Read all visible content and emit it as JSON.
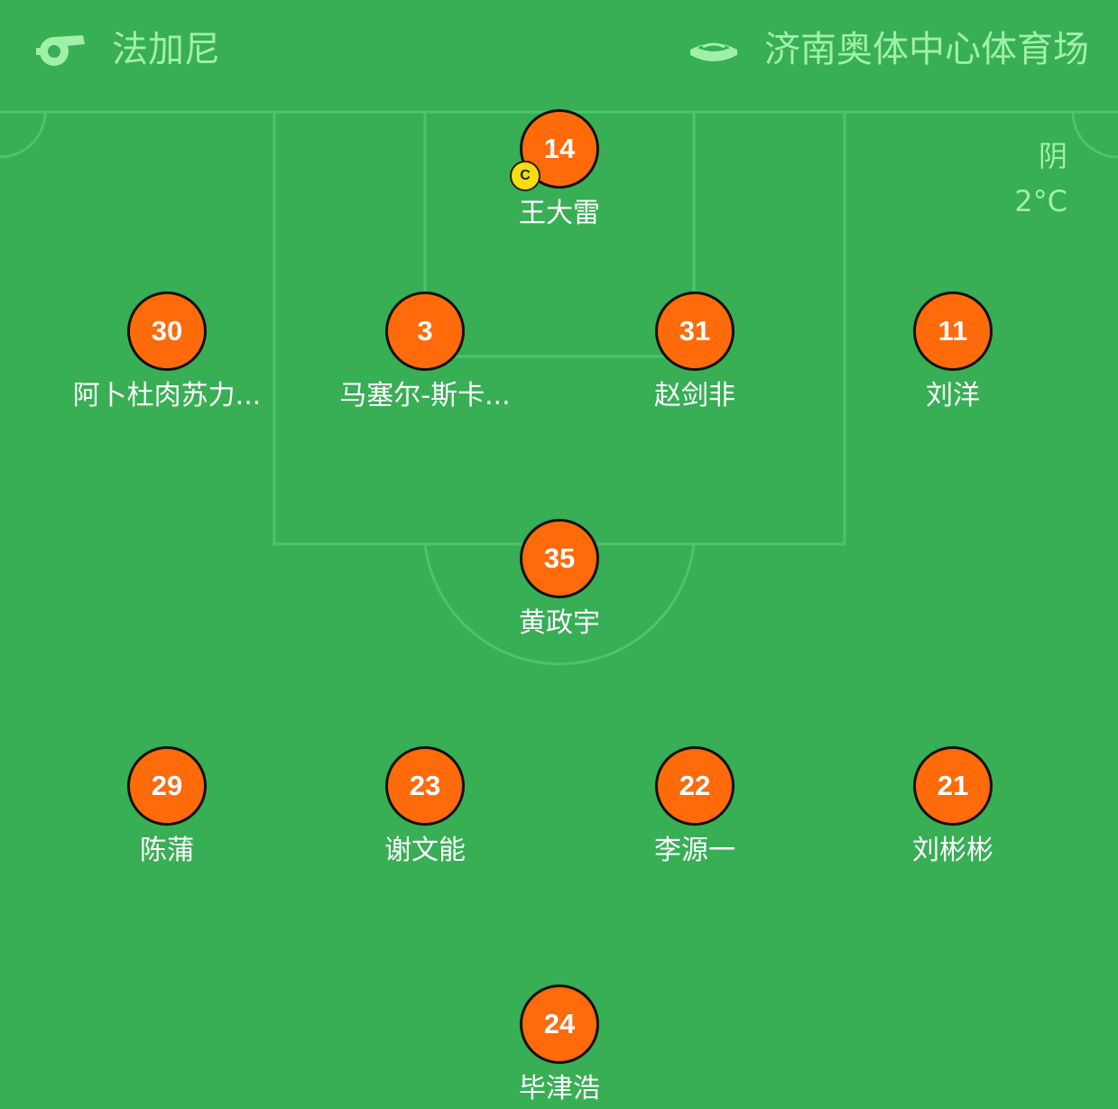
{
  "header": {
    "referee_icon": "whistle-icon",
    "referee": "法加尼",
    "venue_icon": "stadium-icon",
    "venue": "济南奥体中心体育场"
  },
  "weather": {
    "condition": "阴",
    "temperature": "2°C"
  },
  "colors": {
    "pitch": "#38ae55",
    "lines": "#4cc46a",
    "header_text": "#9ff0a8",
    "player_disc": "#ff6a0a",
    "captain_badge": "#f7de12"
  },
  "players": [
    {
      "number": "14",
      "name": "王大雷",
      "captain": "C"
    },
    {
      "number": "30",
      "name": "阿卜杜肉苏力..."
    },
    {
      "number": "3",
      "name": "马塞尔-斯卡..."
    },
    {
      "number": "31",
      "name": "赵剑非"
    },
    {
      "number": "11",
      "name": "刘洋"
    },
    {
      "number": "35",
      "name": "黄政宇"
    },
    {
      "number": "29",
      "name": "陈蒲"
    },
    {
      "number": "23",
      "name": "谢文能"
    },
    {
      "number": "22",
      "name": "李源一"
    },
    {
      "number": "21",
      "name": "刘彬彬"
    },
    {
      "number": "24",
      "name": "毕津浩"
    }
  ]
}
